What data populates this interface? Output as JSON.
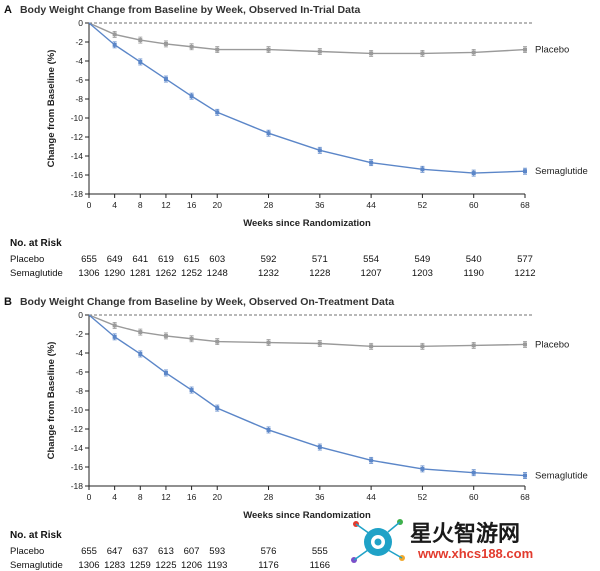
{
  "chart_data": [
    {
      "type": "line",
      "panel_letter": "A",
      "title": "Body Weight Change from Baseline by Week, Observed In-Trial Data",
      "xlabel": "Weeks since Randomization",
      "ylabel": "Change from Baseline (%)",
      "xlim": [
        0,
        68
      ],
      "ylim": [
        -18,
        0
      ],
      "xticks": [
        0,
        4,
        8,
        12,
        16,
        20,
        28,
        36,
        44,
        52,
        60,
        68
      ],
      "yticks": [
        0,
        -2,
        -4,
        -6,
        -8,
        -10,
        -12,
        -14,
        -16,
        -18
      ],
      "grid": false,
      "x": [
        0,
        4,
        8,
        12,
        16,
        20,
        28,
        36,
        44,
        52,
        60,
        68
      ],
      "series": [
        {
          "name": "Placebo",
          "color": "#9a9a9a",
          "values": [
            0,
            -1.2,
            -1.8,
            -2.2,
            -2.5,
            -2.8,
            -2.8,
            -3.0,
            -3.2,
            -3.2,
            -3.1,
            -2.8
          ]
        },
        {
          "name": "Semaglutide",
          "color": "#5b86c8",
          "values": [
            0,
            -2.3,
            -4.1,
            -5.9,
            -7.7,
            -9.4,
            -11.6,
            -13.4,
            -14.7,
            -15.4,
            -15.8,
            -15.6
          ]
        }
      ],
      "risk_table": {
        "title": "No. at Risk",
        "rows": [
          {
            "label": "Placebo",
            "values": [
              "655",
              "649",
              "641",
              "619",
              "615",
              "603",
              "592",
              "571",
              "554",
              "549",
              "540",
              "577"
            ]
          },
          {
            "label": "Semaglutide",
            "values": [
              "1306",
              "1290",
              "1281",
              "1262",
              "1252",
              "1248",
              "1232",
              "1228",
              "1207",
              "1203",
              "1190",
              "1212"
            ]
          }
        ]
      }
    },
    {
      "type": "line",
      "panel_letter": "B",
      "title": "Body Weight Change from Baseline by Week, Observed On-Treatment Data",
      "xlabel": "Weeks since Randomization",
      "ylabel": "Change from Baseline (%)",
      "xlim": [
        0,
        68
      ],
      "ylim": [
        -18,
        0
      ],
      "xticks": [
        0,
        4,
        8,
        12,
        16,
        20,
        28,
        36,
        44,
        52,
        60,
        68
      ],
      "yticks": [
        0,
        -2,
        -4,
        -6,
        -8,
        -10,
        -12,
        -14,
        -16,
        -18
      ],
      "grid": false,
      "x": [
        0,
        4,
        8,
        12,
        16,
        20,
        28,
        36,
        44,
        52,
        60,
        68
      ],
      "series": [
        {
          "name": "Placebo",
          "color": "#9a9a9a",
          "values": [
            0,
            -1.1,
            -1.8,
            -2.2,
            -2.5,
            -2.8,
            -2.9,
            -3.0,
            -3.3,
            -3.3,
            -3.2,
            -3.1
          ]
        },
        {
          "name": "Semaglutide",
          "color": "#5b86c8",
          "values": [
            0,
            -2.3,
            -4.1,
            -6.1,
            -7.9,
            -9.8,
            -12.1,
            -13.9,
            -15.3,
            -16.2,
            -16.6,
            -16.9
          ]
        }
      ],
      "risk_table": {
        "title": "No. at Risk",
        "rows": [
          {
            "label": "Placebo",
            "values": [
              "655",
              "647",
              "637",
              "613",
              "607",
              "593",
              "576",
              "555",
              "",
              "",
              "",
              ""
            ]
          },
          {
            "label": "Semaglutide",
            "values": [
              "1306",
              "1283",
              "1259",
              "1225",
              "1206",
              "1193",
              "1176",
              "1166",
              "",
              "",
              "",
              ""
            ]
          }
        ]
      }
    }
  ],
  "watermark": {
    "text": "星火智游网",
    "url": "www.xhcs188.com"
  }
}
